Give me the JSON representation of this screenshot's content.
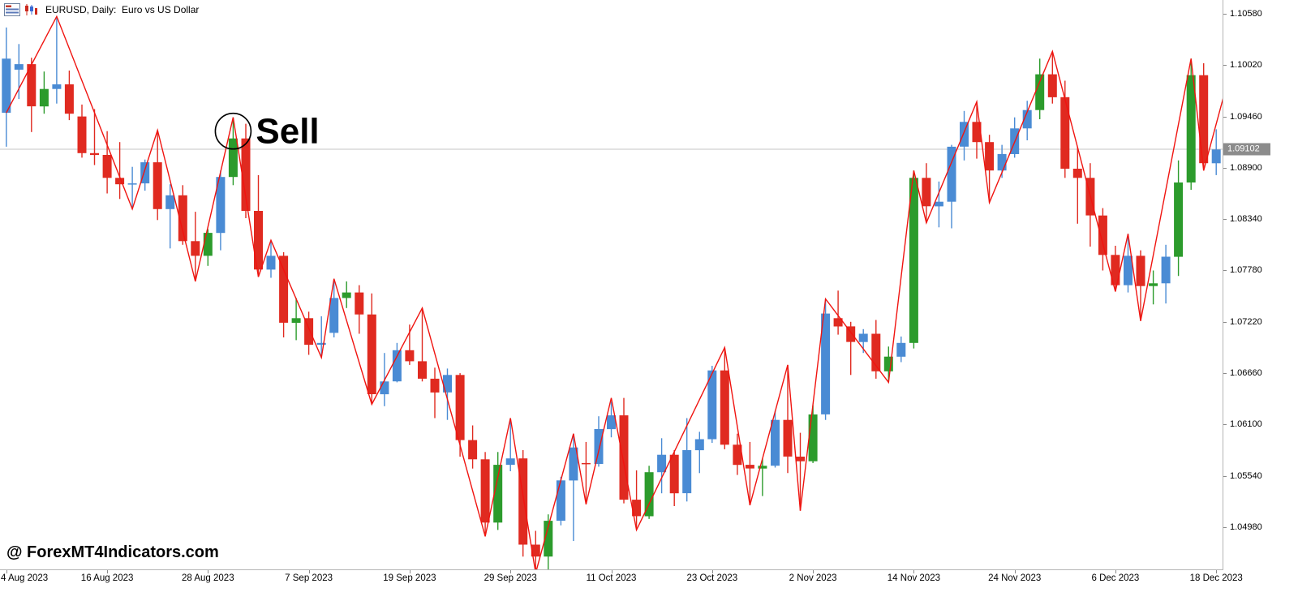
{
  "window": {
    "title": "EURUSD, Daily:  Euro vs US Dollar",
    "icons": [
      "chart-list-icon",
      "candlestick-bars-icon"
    ]
  },
  "watermark": "@ ForexMT4Indicators.com",
  "chart_data": {
    "type": "candlestick",
    "symbol": "EURUSD",
    "timeframe": "Daily",
    "description": "Euro vs US Dollar",
    "current_price": 1.09102,
    "current_price_label": "1.09102",
    "annotation": {
      "label": "Sell",
      "index": 18,
      "price": 1.093
    },
    "price_axis": {
      "tick_labels": [
        "1.10580",
        "1.10020",
        "1.09460",
        "1.08900",
        "1.08340",
        "1.07780",
        "1.07220",
        "1.06660",
        "1.06100",
        "1.05540",
        "1.04980"
      ],
      "top_price": 1.1073,
      "bottom_price": 1.0452
    },
    "date_axis": {
      "ticks": [
        {
          "index": 0,
          "label": "4 Aug 2023"
        },
        {
          "index": 8,
          "label": "16 Aug 2023"
        },
        {
          "index": 16,
          "label": "28 Aug 2023"
        },
        {
          "index": 24,
          "label": "7 Sep 2023"
        },
        {
          "index": 32,
          "label": "19 Sep 2023"
        },
        {
          "index": 40,
          "label": "29 Sep 2023"
        },
        {
          "index": 48,
          "label": "11 Oct 2023"
        },
        {
          "index": 56,
          "label": "23 Oct 2023"
        },
        {
          "index": 64,
          "label": "2 Nov 2023"
        },
        {
          "index": 72,
          "label": "14 Nov 2023"
        },
        {
          "index": 80,
          "label": "24 Nov 2023"
        },
        {
          "index": 88,
          "label": "6 Dec 2023"
        },
        {
          "index": 96,
          "label": "18 Dec 2023"
        }
      ]
    },
    "colors": {
      "up": "#4a8bd4",
      "down": "#e02a20",
      "signal": "#2c9b2c",
      "zigzag": "#f01410",
      "current_price_line": "#c4c4c4",
      "badge_bg": "#8c8c8c",
      "badge_text": "#ffffff",
      "axis_text": "#000000",
      "annotation_color": "#000000"
    },
    "candle_format": [
      "open",
      "high",
      "low",
      "close",
      "color b=blue-up r=red-down g=green-signal"
    ],
    "candles": [
      [
        1.095,
        1.1043,
        1.0913,
        1.1009,
        "b"
      ],
      [
        1.0997,
        1.1025,
        1.0965,
        1.1003,
        "b"
      ],
      [
        1.1003,
        1.101,
        1.0929,
        1.0957,
        "r"
      ],
      [
        1.0957,
        1.0995,
        1.0949,
        1.0976,
        "g"
      ],
      [
        1.0976,
        1.1055,
        1.096,
        1.0981,
        "b"
      ],
      [
        1.0981,
        1.0996,
        1.0942,
        1.0949,
        "r"
      ],
      [
        1.0946,
        1.0959,
        1.0901,
        1.0906,
        "r"
      ],
      [
        1.0906,
        1.0954,
        1.0893,
        1.0904,
        "r"
      ],
      [
        1.0904,
        1.093,
        1.0862,
        1.0879,
        "r"
      ],
      [
        1.0879,
        1.0918,
        1.0856,
        1.0872,
        "r"
      ],
      [
        1.0872,
        1.0891,
        1.0845,
        1.0873,
        "b"
      ],
      [
        1.0873,
        1.0899,
        1.0865,
        1.0896,
        "b"
      ],
      [
        1.0896,
        1.0931,
        1.0833,
        1.0845,
        "r"
      ],
      [
        1.0845,
        1.0872,
        1.0802,
        1.086,
        "b"
      ],
      [
        1.086,
        1.0871,
        1.0806,
        1.081,
        "r"
      ],
      [
        1.081,
        1.0842,
        1.0766,
        1.0794,
        "r"
      ],
      [
        1.0794,
        1.0823,
        1.0783,
        1.0819,
        "g"
      ],
      [
        1.0819,
        1.0887,
        1.08,
        1.088,
        "b"
      ],
      [
        1.088,
        1.0945,
        1.0871,
        1.0922,
        "g"
      ],
      [
        1.0922,
        1.0938,
        1.0835,
        1.0843,
        "r"
      ],
      [
        1.0843,
        1.0882,
        1.0771,
        1.0779,
        "r"
      ],
      [
        1.0779,
        1.0811,
        1.077,
        1.0794,
        "b"
      ],
      [
        1.0794,
        1.0798,
        1.0705,
        1.0721,
        "r"
      ],
      [
        1.0721,
        1.0748,
        1.0702,
        1.0726,
        "g"
      ],
      [
        1.0726,
        1.0733,
        1.0686,
        1.0697,
        "r"
      ],
      [
        1.0697,
        1.0728,
        1.0683,
        1.0699,
        "b"
      ],
      [
        1.071,
        1.0769,
        1.0705,
        1.0748,
        "b"
      ],
      [
        1.0748,
        1.0766,
        1.0737,
        1.0754,
        "g"
      ],
      [
        1.0754,
        1.0762,
        1.0709,
        1.073,
        "r"
      ],
      [
        1.073,
        1.0753,
        1.0632,
        1.0643,
        "r"
      ],
      [
        1.0643,
        1.0688,
        1.063,
        1.0657,
        "b"
      ],
      [
        1.0657,
        1.0699,
        1.0656,
        1.0691,
        "b"
      ],
      [
        1.0691,
        1.0719,
        1.0675,
        1.0679,
        "r"
      ],
      [
        1.0679,
        1.0737,
        1.0657,
        1.066,
        "r"
      ],
      [
        1.066,
        1.0672,
        1.0617,
        1.0645,
        "r"
      ],
      [
        1.0645,
        1.0671,
        1.0615,
        1.0664,
        "b"
      ],
      [
        1.0664,
        1.0666,
        1.0575,
        1.0593,
        "r"
      ],
      [
        1.0593,
        1.0609,
        1.0562,
        1.0572,
        "r"
      ],
      [
        1.0572,
        1.058,
        1.0488,
        1.0503,
        "r"
      ],
      [
        1.0503,
        1.058,
        1.0495,
        1.0566,
        "g"
      ],
      [
        1.0566,
        1.0617,
        1.0559,
        1.0573,
        "b"
      ],
      [
        1.0573,
        1.0582,
        1.0466,
        1.0479,
        "r"
      ],
      [
        1.0479,
        1.0494,
        1.0448,
        1.0466,
        "r"
      ],
      [
        1.0466,
        1.0512,
        1.0452,
        1.0505,
        "g"
      ],
      [
        1.0505,
        1.0553,
        1.05,
        1.0549,
        "b"
      ],
      [
        1.0549,
        1.06,
        1.0483,
        1.0585,
        "b"
      ],
      [
        1.0568,
        1.0591,
        1.0523,
        1.0567,
        "r"
      ],
      [
        1.0567,
        1.0619,
        1.0564,
        1.0605,
        "b"
      ],
      [
        1.0605,
        1.0635,
        1.0596,
        1.062,
        "b"
      ],
      [
        1.062,
        1.0639,
        1.0524,
        1.0528,
        "r"
      ],
      [
        1.0528,
        1.056,
        1.0495,
        1.051,
        "r"
      ],
      [
        1.051,
        1.0565,
        1.0507,
        1.0558,
        "g"
      ],
      [
        1.0558,
        1.0595,
        1.0535,
        1.0577,
        "b"
      ],
      [
        1.0577,
        1.0582,
        1.0521,
        1.0535,
        "r"
      ],
      [
        1.0535,
        1.0617,
        1.0526,
        1.0582,
        "b"
      ],
      [
        1.0582,
        1.0602,
        1.0557,
        1.0594,
        "b"
      ],
      [
        1.0594,
        1.0674,
        1.059,
        1.0669,
        "b"
      ],
      [
        1.0669,
        1.0694,
        1.0583,
        1.0588,
        "r"
      ],
      [
        1.0588,
        1.06,
        1.0555,
        1.0566,
        "r"
      ],
      [
        1.0566,
        1.0591,
        1.0522,
        1.0562,
        "r"
      ],
      [
        1.0562,
        1.0573,
        1.0532,
        1.0565,
        "g"
      ],
      [
        1.0565,
        1.0625,
        1.0563,
        1.0615,
        "b"
      ],
      [
        1.0615,
        1.0675,
        1.0557,
        1.0575,
        "r"
      ],
      [
        1.0575,
        1.0601,
        1.0516,
        1.057,
        "r"
      ],
      [
        1.057,
        1.0631,
        1.0568,
        1.0621,
        "g"
      ],
      [
        1.0621,
        1.0747,
        1.0615,
        1.0731,
        "b"
      ],
      [
        1.0726,
        1.0756,
        1.0708,
        1.0717,
        "r"
      ],
      [
        1.0717,
        1.0722,
        1.0664,
        1.07,
        "r"
      ],
      [
        1.07,
        1.0714,
        1.0688,
        1.0709,
        "b"
      ],
      [
        1.0709,
        1.0724,
        1.066,
        1.0668,
        "r"
      ],
      [
        1.0668,
        1.0695,
        1.0656,
        1.0684,
        "g"
      ],
      [
        1.0684,
        1.0706,
        1.0678,
        1.0699,
        "b"
      ],
      [
        1.0699,
        1.0887,
        1.0693,
        1.0879,
        "g"
      ],
      [
        1.0879,
        1.0895,
        1.083,
        1.0848,
        "r"
      ],
      [
        1.0848,
        1.0875,
        1.0825,
        1.0853,
        "b"
      ],
      [
        1.0853,
        1.0915,
        1.0824,
        1.0913,
        "b"
      ],
      [
        1.0913,
        1.0952,
        1.0898,
        1.094,
        "b"
      ],
      [
        1.094,
        1.0962,
        1.09,
        1.0918,
        "r"
      ],
      [
        1.0918,
        1.0926,
        1.0852,
        1.0887,
        "r"
      ],
      [
        1.0887,
        1.0915,
        1.0879,
        1.0905,
        "b"
      ],
      [
        1.0905,
        1.0945,
        1.0901,
        1.0933,
        "b"
      ],
      [
        1.0933,
        1.0963,
        1.092,
        1.0953,
        "b"
      ],
      [
        1.0953,
        1.1009,
        1.0943,
        1.0992,
        "g"
      ],
      [
        1.0992,
        1.1017,
        1.096,
        1.0967,
        "r"
      ],
      [
        1.0967,
        1.0985,
        1.0879,
        1.0889,
        "r"
      ],
      [
        1.0889,
        1.0913,
        1.0829,
        1.0879,
        "r"
      ],
      [
        1.0879,
        1.0895,
        1.0804,
        1.0838,
        "r"
      ],
      [
        1.0838,
        1.0846,
        1.0778,
        1.0795,
        "r"
      ],
      [
        1.0795,
        1.0805,
        1.0755,
        1.0762,
        "r"
      ],
      [
        1.0762,
        1.0818,
        1.0754,
        1.0794,
        "b"
      ],
      [
        1.0794,
        1.08,
        1.0723,
        1.0761,
        "r"
      ],
      [
        1.0761,
        1.0778,
        1.0741,
        1.0764,
        "g"
      ],
      [
        1.0764,
        1.0806,
        1.0742,
        1.0793,
        "b"
      ],
      [
        1.0793,
        1.0898,
        1.0772,
        1.0874,
        "g"
      ],
      [
        1.0874,
        1.1009,
        1.0866,
        1.0991,
        "g"
      ],
      [
        1.0991,
        1.1004,
        1.0887,
        1.0895,
        "r"
      ],
      [
        1.0895,
        1.0932,
        1.0882,
        1.091,
        "b"
      ]
    ],
    "zigzag_points": [
      [
        0,
        1.095
      ],
      [
        4,
        1.1055
      ],
      [
        10,
        1.0845
      ],
      [
        12,
        1.0931
      ],
      [
        15,
        1.0766
      ],
      [
        18,
        1.0945
      ],
      [
        20,
        1.0771
      ],
      [
        21,
        1.0811
      ],
      [
        25,
        1.0683
      ],
      [
        26,
        1.0769
      ],
      [
        29,
        1.0632
      ],
      [
        33,
        1.0737
      ],
      [
        38,
        1.0488
      ],
      [
        40,
        1.0617
      ],
      [
        42,
        1.0448
      ],
      [
        45,
        1.06
      ],
      [
        46,
        1.0523
      ],
      [
        48,
        1.0639
      ],
      [
        50,
        1.0495
      ],
      [
        57,
        1.0694
      ],
      [
        59,
        1.0522
      ],
      [
        62,
        1.0675
      ],
      [
        63,
        1.0516
      ],
      [
        65,
        1.0747
      ],
      [
        70,
        1.0656
      ],
      [
        72,
        1.0887
      ],
      [
        73,
        1.083
      ],
      [
        77,
        1.0962
      ],
      [
        78,
        1.0852
      ],
      [
        83,
        1.1017
      ],
      [
        88,
        1.0755
      ],
      [
        89,
        1.0818
      ],
      [
        90,
        1.0723
      ],
      [
        94,
        1.1009
      ],
      [
        95,
        1.0887
      ],
      [
        98,
        1.104
      ]
    ]
  }
}
